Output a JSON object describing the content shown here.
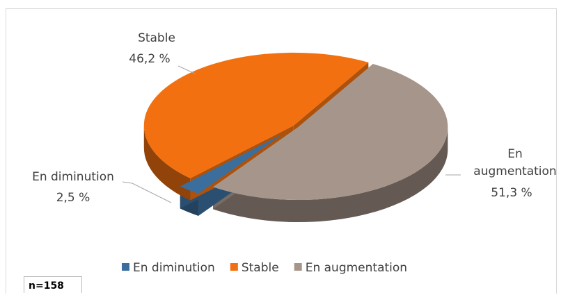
{
  "chart_data": {
    "type": "pie",
    "three_d": true,
    "categories": [
      "En diminution",
      "Stable",
      "En augmentation"
    ],
    "values": [
      2.5,
      46.2,
      51.3
    ],
    "value_labels": [
      "2,5 %",
      "46,2 %",
      "51,3 %"
    ],
    "colors": [
      "#3b6e9c",
      "#f2700f",
      "#a6958a"
    ],
    "legend": "bottom",
    "annotation": "n=158"
  }
}
